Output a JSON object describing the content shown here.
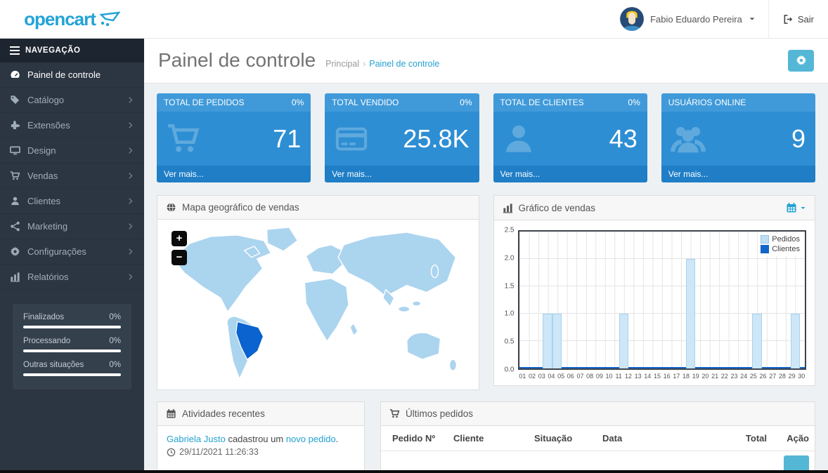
{
  "header": {
    "logo_text": "opencart",
    "user_name": "Fabio Eduardo Pereira",
    "logout_label": "Sair"
  },
  "sidebar": {
    "nav_title": "NAVEGAÇÃO",
    "items": [
      {
        "label": "Painel de controle",
        "icon": "dashboard-icon",
        "active": true,
        "has_children": false
      },
      {
        "label": "Catálogo",
        "icon": "tag-icon",
        "active": false,
        "has_children": true
      },
      {
        "label": "Extensões",
        "icon": "puzzle-icon",
        "active": false,
        "has_children": true
      },
      {
        "label": "Design",
        "icon": "monitor-icon",
        "active": false,
        "has_children": true
      },
      {
        "label": "Vendas",
        "icon": "cart-icon",
        "active": false,
        "has_children": true
      },
      {
        "label": "Clientes",
        "icon": "user-icon",
        "active": false,
        "has_children": true
      },
      {
        "label": "Marketing",
        "icon": "share-icon",
        "active": false,
        "has_children": true
      },
      {
        "label": "Configurações",
        "icon": "gear-icon",
        "active": false,
        "has_children": true
      },
      {
        "label": "Relatórios",
        "icon": "bar-chart-icon",
        "active": false,
        "has_children": true
      }
    ],
    "stats": [
      {
        "label": "Finalizados",
        "value": "0%"
      },
      {
        "label": "Processando",
        "value": "0%"
      },
      {
        "label": "Outras situações",
        "value": "0%"
      }
    ]
  },
  "page": {
    "title": "Painel de controle",
    "breadcrumb_home": "Principal",
    "breadcrumb_current": "Painel de controle"
  },
  "tiles": [
    {
      "title": "TOTAL DE PEDIDOS",
      "percent": "0%",
      "value": "71",
      "icon": "cart-icon",
      "link": "Ver mais..."
    },
    {
      "title": "TOTAL VENDIDO",
      "percent": "0%",
      "value": "25.8K",
      "icon": "credit-card-icon",
      "link": "Ver mais..."
    },
    {
      "title": "TOTAL DE CLIENTES",
      "percent": "0%",
      "value": "43",
      "icon": "user-icon",
      "link": "Ver mais..."
    },
    {
      "title": "USUÁRIOS ONLINE",
      "percent": "",
      "value": "9",
      "icon": "users-icon",
      "link": "Ver mais..."
    }
  ],
  "map_panel": {
    "title": "Mapa geográfico de vendas",
    "zoom_in_label": "+",
    "zoom_out_label": "−",
    "highlight_country": "Brazil",
    "colors": {
      "country": "#abd4ef",
      "highlight": "#0a63ce"
    }
  },
  "chart_panel": {
    "title": "Gráfico de vendas"
  },
  "chart_data": {
    "type": "bar",
    "title": "Gráfico de vendas",
    "x": [
      "01",
      "02",
      "03",
      "04",
      "05",
      "06",
      "07",
      "08",
      "09",
      "10",
      "11",
      "12",
      "13",
      "14",
      "15",
      "16",
      "17",
      "18",
      "19",
      "20",
      "21",
      "22",
      "23",
      "24",
      "25",
      "26",
      "27",
      "28",
      "29",
      "30"
    ],
    "yticks": [
      "0.0",
      "0.5",
      "1.0",
      "1.5",
      "2.0",
      "2.5"
    ],
    "ylim": [
      0,
      2.5
    ],
    "grid": true,
    "legend_position": "top-right",
    "series": [
      {
        "name": "Pedidos",
        "color": "#cde7f8",
        "border_color": "#a7d2ec",
        "points": [
          {
            "day": 4,
            "value": 1
          },
          {
            "day": 5,
            "value": 1
          },
          {
            "day": 12,
            "value": 1
          },
          {
            "day": 19,
            "value": 2
          },
          {
            "day": 26,
            "value": 1
          },
          {
            "day": 30,
            "value": 1
          }
        ]
      },
      {
        "name": "Clientes",
        "color": "#1166cb",
        "constant_value": 0
      }
    ]
  },
  "activities": {
    "title": "Atividades recentes",
    "entries": [
      {
        "user": "Gabriela Justo",
        "action_text": " cadastrou um ",
        "link_text": "novo pedido",
        "suffix": ".",
        "timestamp": "29/11/2021 11:26:33"
      }
    ]
  },
  "orders": {
    "title": "Últimos pedidos",
    "columns": [
      "Pedido Nº",
      "Cliente",
      "Situação",
      "Data",
      "Total",
      "Ação"
    ]
  },
  "colors": {
    "accent": "#23a1d1",
    "tile_header": "#409ad9",
    "tile_body": "#2e8ed3",
    "tile_footer": "#1f7ec6",
    "sidebar_bg": "#2c3642",
    "button_info": "#54b7d6"
  }
}
